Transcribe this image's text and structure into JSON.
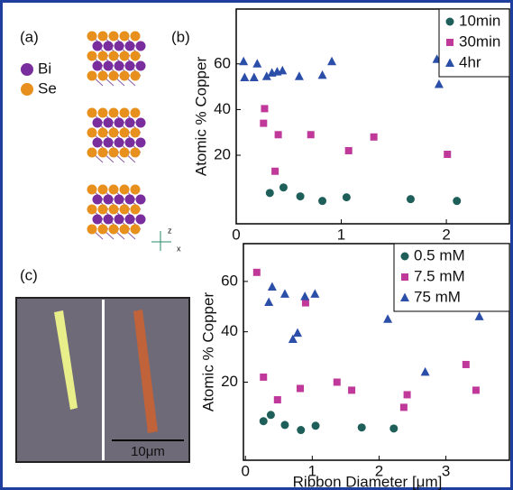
{
  "figure": {
    "panel_labels": [
      "(a)",
      "(b)",
      "(c)"
    ],
    "atoms": [
      "Bi",
      "Se"
    ],
    "axis_labels": [
      "z",
      "x"
    ],
    "scale_bar": "10μm"
  },
  "chart_data": [
    {
      "type": "scatter",
      "y_label": "Atomic % Copper",
      "xlim": [
        0,
        2.6
      ],
      "ylim": [
        -10,
        84
      ],
      "xticks": [
        0,
        1,
        2
      ],
      "yticks": [
        20,
        40,
        60
      ],
      "legend": "top-right",
      "series": [
        {
          "name": "10min",
          "color": "#1f5f5a",
          "marker": "circle",
          "x": [
            0.32,
            0.45,
            0.61,
            0.82,
            1.05,
            1.66,
            2.1
          ],
          "values": [
            3.5,
            5.9,
            2,
            0,
            1.6,
            0.8,
            0
          ]
        },
        {
          "name": "30min",
          "color": "#c0399a",
          "marker": "square",
          "x": [
            0.27,
            0.26,
            0.4,
            0.37,
            0.71,
            1.07,
            1.31,
            2.01
          ],
          "values": [
            40.4,
            34,
            29,
            13,
            29,
            22,
            28,
            20.4
          ]
        },
        {
          "name": "4hr",
          "color": "#2b4fa8",
          "marker": "triangle",
          "x": [
            0.07,
            0.2,
            0.08,
            0.17,
            0.29,
            0.34,
            0.39,
            0.44,
            0.6,
            0.82,
            0.91,
            1.91,
            1.93
          ],
          "values": [
            61,
            60,
            54,
            54,
            54.5,
            56,
            56.5,
            57,
            54.5,
            55,
            61,
            62,
            51
          ]
        }
      ]
    },
    {
      "type": "scatter",
      "x_label": "Ribbon Diameter [μm]",
      "y_label": "Atomic % Copper",
      "xlim": [
        -0.03,
        3.95
      ],
      "ylim": [
        -11,
        75
      ],
      "xticks": [
        0,
        1,
        2,
        3
      ],
      "yticks": [
        20,
        40,
        60
      ],
      "legend": "top-right",
      "series": [
        {
          "name": "0.5 mM",
          "color": "#1f5f5a",
          "marker": "circle",
          "x": [
            0.27,
            0.38,
            0.59,
            0.83,
            1.05,
            1.74,
            2.22
          ],
          "values": [
            4.5,
            7,
            3,
            1,
            2.7,
            2,
            1.6
          ]
        },
        {
          "name": "7.5 mM",
          "color": "#c0399a",
          "marker": "square",
          "x": [
            0.17,
            0.27,
            0.48,
            0.82,
            0.9,
            1.37,
            1.59,
            2.37,
            2.42,
            3.3,
            3.45
          ],
          "values": [
            63.6,
            22,
            13,
            17.5,
            51.5,
            20,
            16.8,
            10,
            15,
            27,
            16.8
          ]
        },
        {
          "name": "75 mM",
          "color": "#2b4fa8",
          "marker": "triangle",
          "x": [
            0.35,
            0.4,
            0.59,
            0.71,
            0.78,
            0.89,
            1.04,
            2.13,
            2.69,
            3.5
          ],
          "values": [
            51.7,
            57.8,
            55,
            37,
            39.5,
            54,
            55,
            45,
            24,
            46
          ]
        }
      ]
    }
  ]
}
